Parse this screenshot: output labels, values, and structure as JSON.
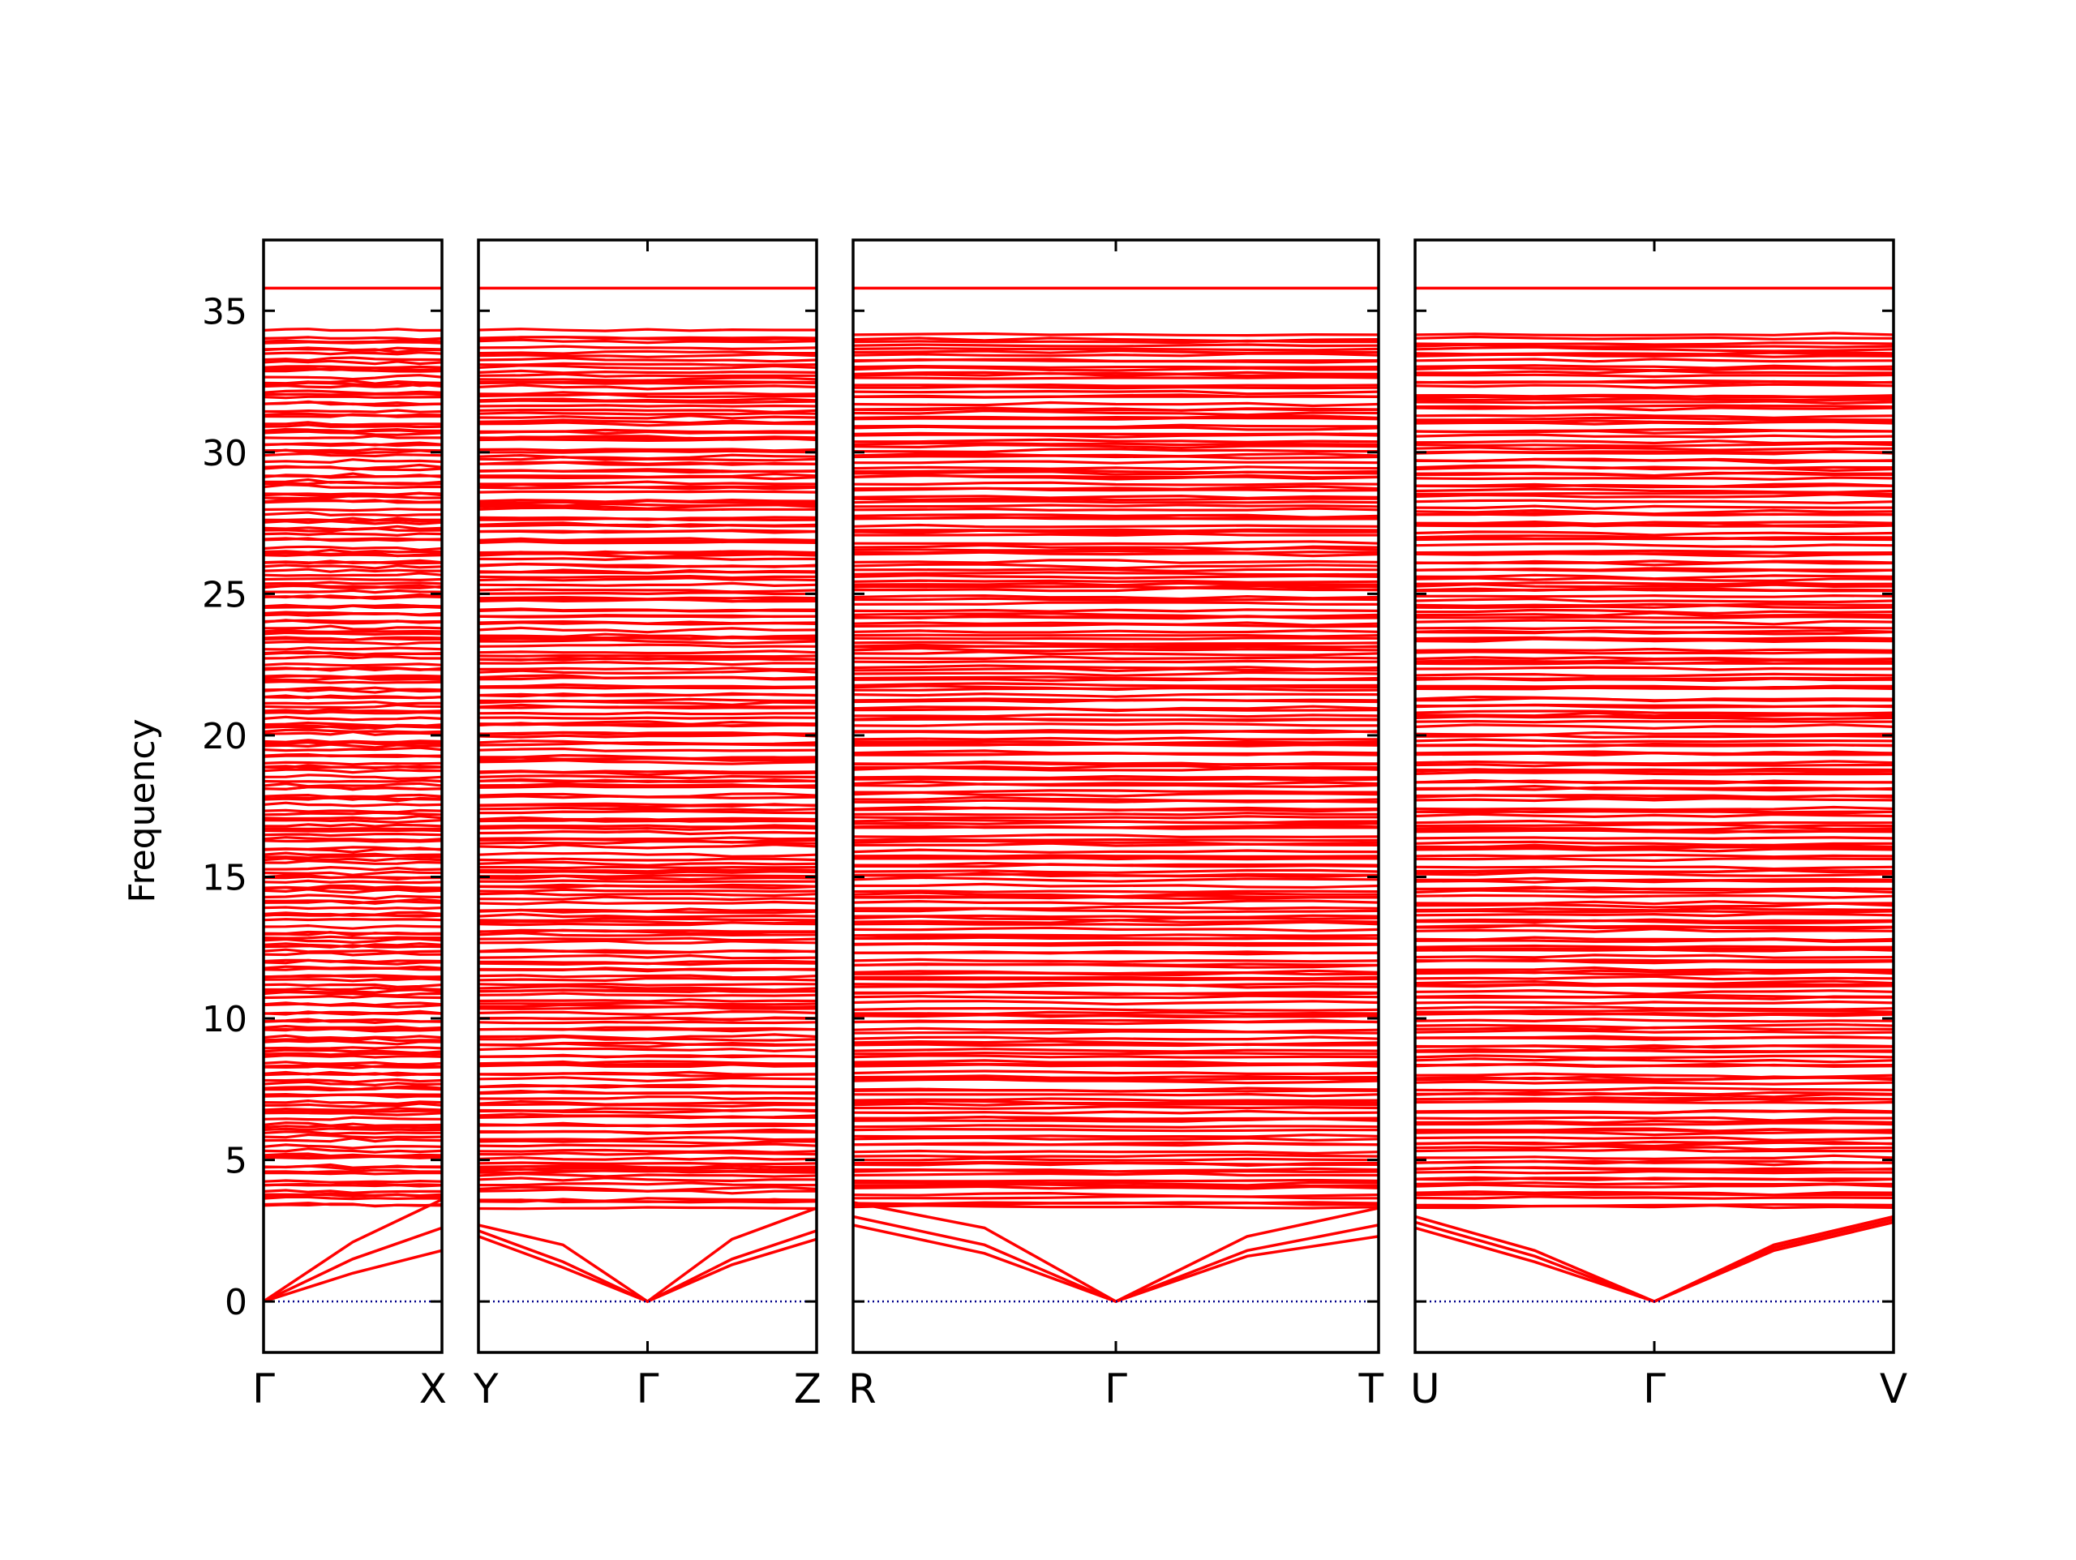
{
  "chart_data": {
    "type": "line",
    "title": "",
    "ylabel": "Frequency",
    "ylim": [
      -1.8,
      37.5
    ],
    "yticks": [
      0,
      5,
      10,
      15,
      20,
      25,
      30,
      35
    ],
    "grid": false,
    "colors": {
      "bands": "#ff0000",
      "zero_line": "#00008b",
      "frame": "#000000"
    },
    "panels": [
      {
        "labels": [
          "Γ",
          "X"
        ],
        "xlim": [
          0,
          1
        ]
      },
      {
        "labels": [
          "Y",
          "Γ",
          "Z"
        ],
        "xlim": [
          0,
          2
        ]
      },
      {
        "labels": [
          "R",
          "Γ",
          "T"
        ],
        "xlim": [
          0,
          2
        ]
      },
      {
        "labels": [
          "U",
          "Γ",
          "V"
        ],
        "xlim": [
          0,
          2
        ]
      }
    ],
    "acoustic_branches": [
      {
        "panel": 0,
        "series": [
          {
            "x": [
              0,
              0.5,
              1
            ],
            "y": [
              0,
              2.1,
              3.6
            ]
          },
          {
            "x": [
              0,
              0.5,
              1
            ],
            "y": [
              0,
              1.5,
              2.6
            ]
          },
          {
            "x": [
              0,
              0.5,
              1
            ],
            "y": [
              0,
              1.0,
              1.8
            ]
          }
        ]
      },
      {
        "panel": 1,
        "series": [
          {
            "x": [
              0,
              0.5,
              1,
              1.5,
              2
            ],
            "y": [
              2.7,
              2.0,
              0,
              2.2,
              3.3
            ]
          },
          {
            "x": [
              0,
              0.5,
              1,
              1.5,
              2
            ],
            "y": [
              2.5,
              1.4,
              0,
              1.5,
              2.5
            ]
          },
          {
            "x": [
              0,
              0.5,
              1,
              1.5,
              2
            ],
            "y": [
              2.3,
              1.2,
              0,
              1.3,
              2.2
            ]
          }
        ]
      },
      {
        "panel": 2,
        "series": [
          {
            "x": [
              0,
              0.5,
              1,
              1.5,
              2
            ],
            "y": [
              3.5,
              2.6,
              0,
              2.3,
              3.3
            ]
          },
          {
            "x": [
              0,
              0.5,
              1,
              1.5,
              2
            ],
            "y": [
              3.0,
              2.0,
              0,
              1.8,
              2.7
            ]
          },
          {
            "x": [
              0,
              0.5,
              1,
              1.5,
              2
            ],
            "y": [
              2.7,
              1.7,
              0,
              1.6,
              2.3
            ]
          }
        ]
      },
      {
        "panel": 3,
        "series": [
          {
            "x": [
              0,
              0.5,
              1,
              1.5,
              2
            ],
            "y": [
              3.0,
              1.8,
              0,
              2.0,
              3.0
            ]
          },
          {
            "x": [
              0,
              0.5,
              1,
              1.5,
              2
            ],
            "y": [
              2.8,
              1.6,
              0,
              1.9,
              2.9
            ]
          },
          {
            "x": [
              0,
              0.5,
              1,
              1.5,
              2
            ],
            "y": [
              2.6,
              1.4,
              0,
              1.8,
              2.8
            ]
          }
        ]
      }
    ],
    "optical_band_range": [
      3.3,
      34.2
    ],
    "optical_band_count": 240,
    "top_band": 35.8
  }
}
